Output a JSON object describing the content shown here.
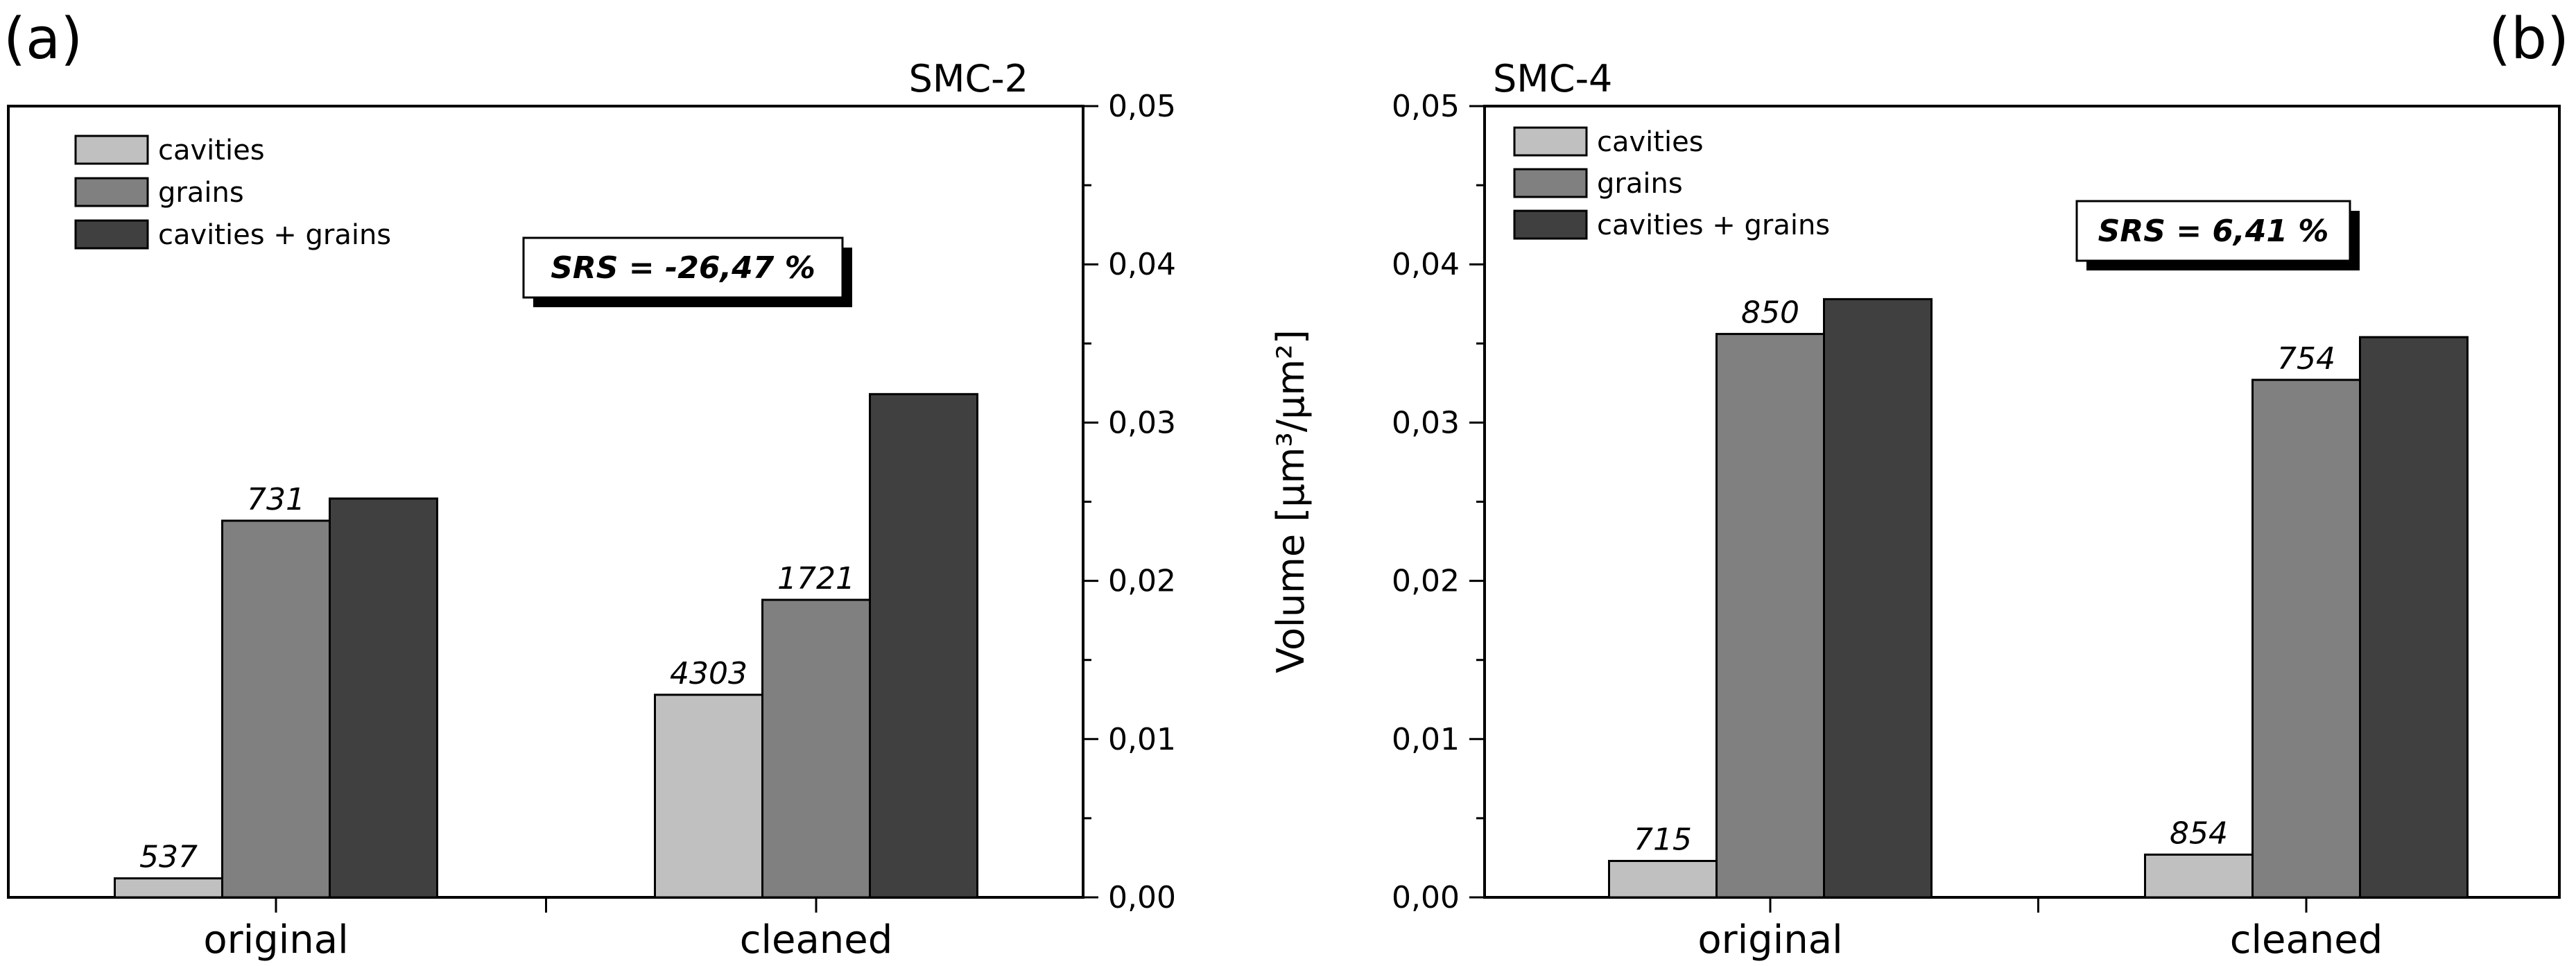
{
  "chart_data": [
    {
      "type": "bar",
      "panel_label": "(a)",
      "title": "SMC-2",
      "categories": [
        "original",
        "cleaned"
      ],
      "series": [
        {
          "name": "cavities",
          "color": "#c0c0c0",
          "values": [
            0.0012,
            0.0128
          ],
          "labels": [
            "537",
            "4303"
          ]
        },
        {
          "name": "grains",
          "color": "#808080",
          "values": [
            0.0238,
            0.0188
          ],
          "labels": [
            "731",
            "1721"
          ]
        },
        {
          "name": "cavities + grains",
          "color": "#404040",
          "values": [
            0.0252,
            0.0318
          ],
          "labels": [
            "",
            ""
          ]
        }
      ],
      "ylim": [
        0,
        0.05
      ],
      "yticks": [
        "0,00",
        "0,01",
        "0,02",
        "0,03",
        "0,04",
        "0,05"
      ],
      "y_axis_side": "right",
      "ylabel": "",
      "annotation": "SRS = -26,47 %",
      "legend_position": "top-left"
    },
    {
      "type": "bar",
      "panel_label": "(b)",
      "title": "SMC-4",
      "categories": [
        "original",
        "cleaned"
      ],
      "series": [
        {
          "name": "cavities",
          "color": "#c0c0c0",
          "values": [
            0.0023,
            0.0027
          ],
          "labels": [
            "715",
            "854"
          ]
        },
        {
          "name": "grains",
          "color": "#808080",
          "values": [
            0.0356,
            0.0327
          ],
          "labels": [
            "850",
            "754"
          ]
        },
        {
          "name": "cavities + grains",
          "color": "#404040",
          "values": [
            0.0378,
            0.0354
          ],
          "labels": [
            "",
            ""
          ]
        }
      ],
      "ylim": [
        0,
        0.05
      ],
      "yticks": [
        "0,00",
        "0,01",
        "0,02",
        "0,03",
        "0,04",
        "0,05"
      ],
      "y_axis_side": "left",
      "ylabel": "Volume [µm³/µm²]",
      "annotation": "SRS = 6,41 %",
      "legend_position": "top-left"
    }
  ]
}
